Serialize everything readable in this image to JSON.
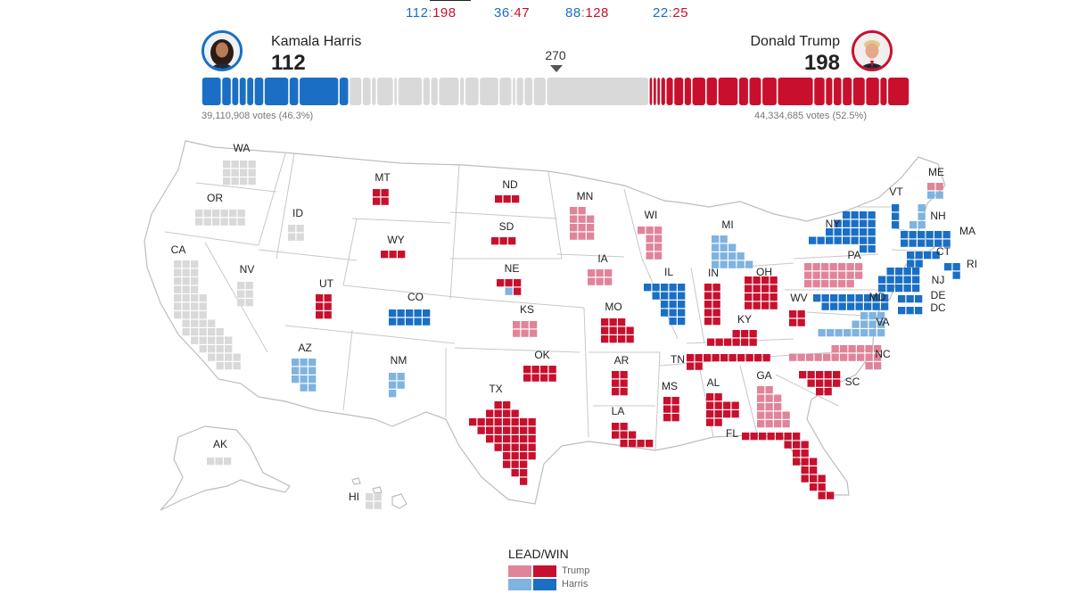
{
  "top_tallies": [
    {
      "a": "112",
      "sep": ":",
      "b": "198"
    },
    {
      "a": "36",
      "sep": ":",
      "b": "47"
    },
    {
      "a": "88",
      "sep": ":",
      "b": "128"
    },
    {
      "a": "22",
      "sep": ":",
      "b": "25"
    }
  ],
  "candidates": {
    "harris": {
      "name": "Kamala Harris",
      "electoral_votes": "112",
      "votes": "39,110,908 votes (46.3%)",
      "color": "#1a6fc4",
      "ev_count": 112
    },
    "trump": {
      "name": "Donald Trump",
      "electoral_votes": "198",
      "votes": "44,334,685 votes (52.5%)",
      "color": "#c8102e",
      "ev_count": 198
    }
  },
  "threshold": {
    "label": "270"
  },
  "colors": {
    "trump_lead": "#e0849a",
    "trump_win": "#c8102e",
    "harris_lead": "#7fb3e0",
    "harris_win": "#1a6fc4",
    "undecided": "#d9d9d9",
    "map_stroke": "#bdbdbd"
  },
  "legend": {
    "title": "LEAD/WIN",
    "trump": "Trump",
    "harris": "Harris"
  },
  "states": [
    {
      "abbr": "WA",
      "status": "undecided"
    },
    {
      "abbr": "OR",
      "status": "undecided"
    },
    {
      "abbr": "CA",
      "status": "undecided"
    },
    {
      "abbr": "ID",
      "status": "undecided"
    },
    {
      "abbr": "NV",
      "status": "undecided"
    },
    {
      "abbr": "MT",
      "status": "trump_win"
    },
    {
      "abbr": "WY",
      "status": "trump_win"
    },
    {
      "abbr": "UT",
      "status": "trump_win"
    },
    {
      "abbr": "AZ",
      "status": "harris_lead"
    },
    {
      "abbr": "CO",
      "status": "harris_win"
    },
    {
      "abbr": "NM",
      "status": "harris_lead"
    },
    {
      "abbr": "ND",
      "status": "trump_win"
    },
    {
      "abbr": "SD",
      "status": "trump_win"
    },
    {
      "abbr": "NE",
      "status": "trump_win"
    },
    {
      "abbr": "KS",
      "status": "trump_lead"
    },
    {
      "abbr": "OK",
      "status": "trump_win"
    },
    {
      "abbr": "TX",
      "status": "trump_win"
    },
    {
      "abbr": "MN",
      "status": "trump_lead"
    },
    {
      "abbr": "IA",
      "status": "trump_lead"
    },
    {
      "abbr": "MO",
      "status": "trump_win"
    },
    {
      "abbr": "AR",
      "status": "trump_win"
    },
    {
      "abbr": "LA",
      "status": "trump_win"
    },
    {
      "abbr": "WI",
      "status": "trump_lead"
    },
    {
      "abbr": "IL",
      "status": "harris_win"
    },
    {
      "abbr": "MI",
      "status": "harris_lead"
    },
    {
      "abbr": "IN",
      "status": "trump_win"
    },
    {
      "abbr": "OH",
      "status": "trump_win"
    },
    {
      "abbr": "KY",
      "status": "trump_win"
    },
    {
      "abbr": "TN",
      "status": "trump_win"
    },
    {
      "abbr": "MS",
      "status": "trump_win"
    },
    {
      "abbr": "AL",
      "status": "trump_win"
    },
    {
      "abbr": "GA",
      "status": "trump_lead"
    },
    {
      "abbr": "FL",
      "status": "trump_win"
    },
    {
      "abbr": "SC",
      "status": "trump_win"
    },
    {
      "abbr": "NC",
      "status": "trump_lead"
    },
    {
      "abbr": "VA",
      "status": "harris_lead"
    },
    {
      "abbr": "WV",
      "status": "trump_win"
    },
    {
      "abbr": "PA",
      "status": "trump_lead"
    },
    {
      "abbr": "NY",
      "status": "harris_win"
    },
    {
      "abbr": "VT",
      "status": "harris_win"
    },
    {
      "abbr": "NH",
      "status": "harris_lead"
    },
    {
      "abbr": "ME",
      "status": "mixed"
    },
    {
      "abbr": "MA",
      "status": "harris_win"
    },
    {
      "abbr": "CT",
      "status": "harris_win"
    },
    {
      "abbr": "RI",
      "status": "harris_win"
    },
    {
      "abbr": "NJ",
      "status": "harris_win"
    },
    {
      "abbr": "DE",
      "status": "harris_win"
    },
    {
      "abbr": "MD",
      "status": "harris_win"
    },
    {
      "abbr": "DC",
      "status": "harris_win"
    },
    {
      "abbr": "AK",
      "status": "undecided"
    },
    {
      "abbr": "HI",
      "status": "undecided"
    }
  ]
}
